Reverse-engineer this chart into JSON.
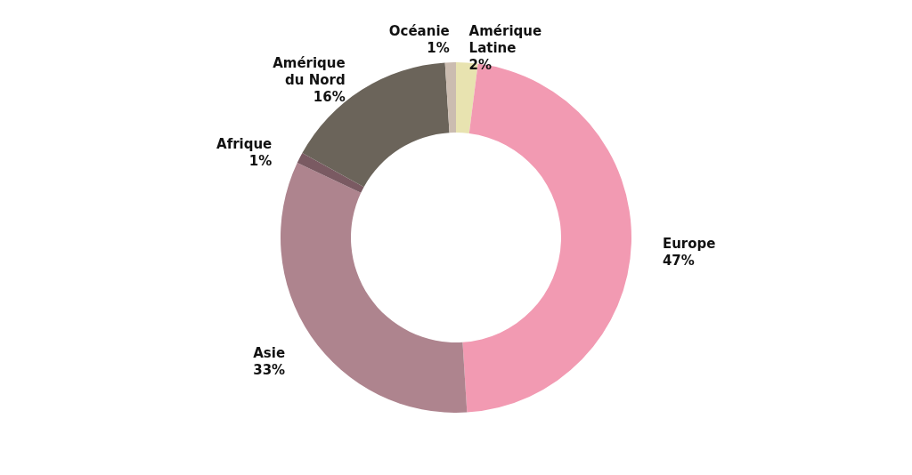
{
  "chart_data": {
    "type": "donut",
    "categories": [
      "Amérique Latine",
      "Europe",
      "Asie",
      "Afrique",
      "Amérique du Nord",
      "Océanie"
    ],
    "values": [
      2,
      47,
      33,
      1,
      16,
      1
    ],
    "value_labels": [
      "2%",
      "47%",
      "33%",
      "1%",
      "16%",
      "1%"
    ],
    "colors": [
      "#e8e3b0",
      "#f29ab2",
      "#ae848e",
      "#7a5a62",
      "#6b645a",
      "#cbbcb0"
    ]
  }
}
